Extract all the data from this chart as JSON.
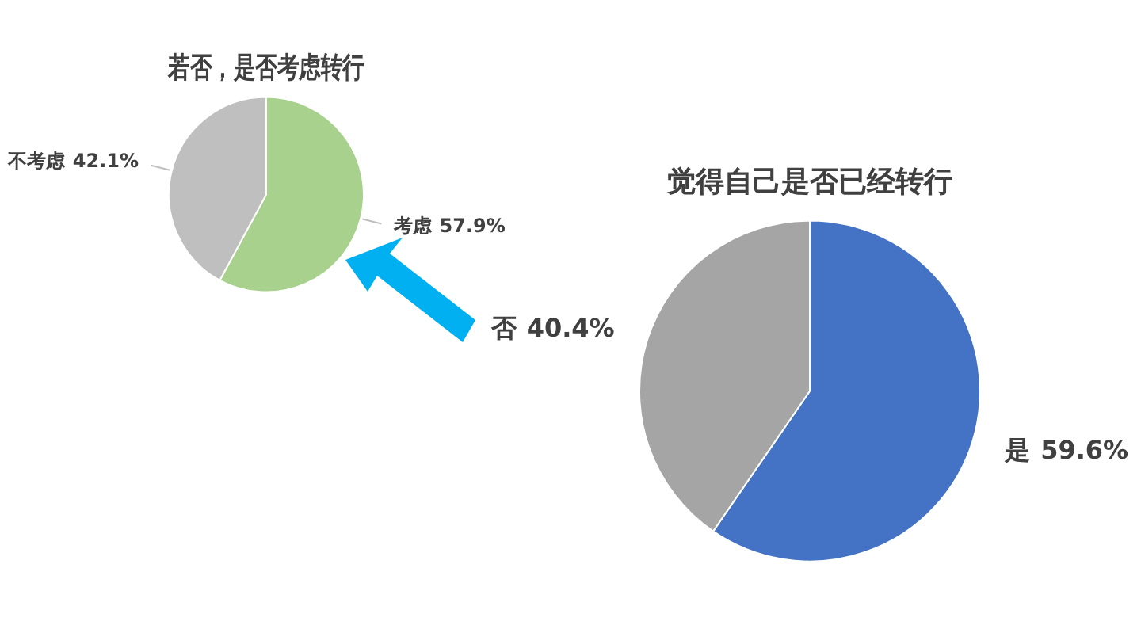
{
  "chart_data": [
    {
      "type": "pie",
      "title": "若否，是否考虑转行",
      "categories": [
        "考虑",
        "不考虑"
      ],
      "values": [
        57.9,
        42.1
      ],
      "colors": [
        "#a9d18e",
        "#bfbfbf"
      ],
      "legend": false,
      "value_labels": [
        "57.9%",
        "42.1%"
      ]
    },
    {
      "type": "pie",
      "title": "觉得自己是否已经转行",
      "categories": [
        "是",
        "否"
      ],
      "values": [
        59.6,
        40.4
      ],
      "colors": [
        "#4472c4",
        "#a5a5a5"
      ],
      "legend": false,
      "value_labels": [
        "59.6%",
        "40.4%"
      ]
    }
  ]
}
